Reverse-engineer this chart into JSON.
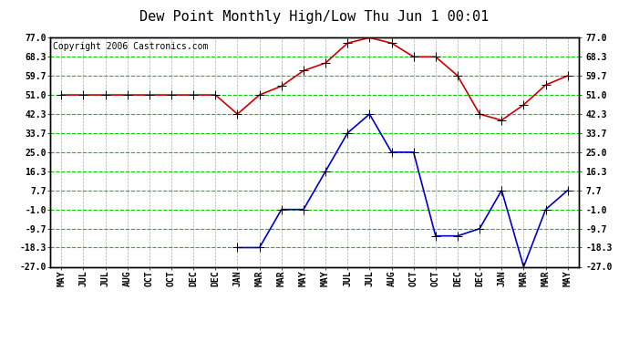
{
  "title": "Dew Point Monthly High/Low Thu Jun 1 00:01",
  "copyright": "Copyright 2006 Castronics.com",
  "x_labels": [
    "MAY",
    "JUL",
    "JUL",
    "AUG",
    "OCT",
    "OCT",
    "DEC",
    "DEC",
    "JAN",
    "MAR",
    "MAR",
    "MAY",
    "MAY",
    "JUL",
    "JUL",
    "AUG",
    "OCT",
    "OCT",
    "DEC",
    "DEC",
    "JAN",
    "MAR",
    "MAR",
    "MAY"
  ],
  "high_values": [
    51.0,
    51.0,
    51.0,
    51.0,
    51.0,
    51.0,
    51.0,
    51.0,
    42.3,
    51.0,
    55.0,
    62.0,
    65.5,
    74.5,
    77.0,
    74.5,
    68.3,
    68.3,
    59.7,
    42.3,
    39.5,
    46.5,
    55.5,
    59.7
  ],
  "low_values": [
    null,
    null,
    null,
    null,
    null,
    null,
    null,
    null,
    -18.3,
    -18.3,
    -1.0,
    -1.0,
    16.3,
    33.7,
    42.3,
    25.0,
    25.0,
    -13.0,
    -13.0,
    -9.7,
    7.7,
    -27.0,
    -1.0,
    7.7
  ],
  "y_ticks": [
    -27.0,
    -18.3,
    -9.7,
    -1.0,
    7.7,
    16.3,
    25.0,
    33.7,
    42.3,
    51.0,
    59.7,
    68.3,
    77.0
  ],
  "ylim_min": -27.0,
  "ylim_max": 77.0,
  "high_color": "#cc0000",
  "low_color": "#0000cc",
  "grid_color": "#00cc00",
  "vgrid_color": "#aaaaaa",
  "bg_color": "#ffffff",
  "marker": "+",
  "marker_size": 7,
  "line_width": 1.2,
  "title_fontsize": 11,
  "copyright_fontsize": 7,
  "tick_fontsize": 7,
  "figsize": [
    6.9,
    3.75
  ],
  "dpi": 100
}
